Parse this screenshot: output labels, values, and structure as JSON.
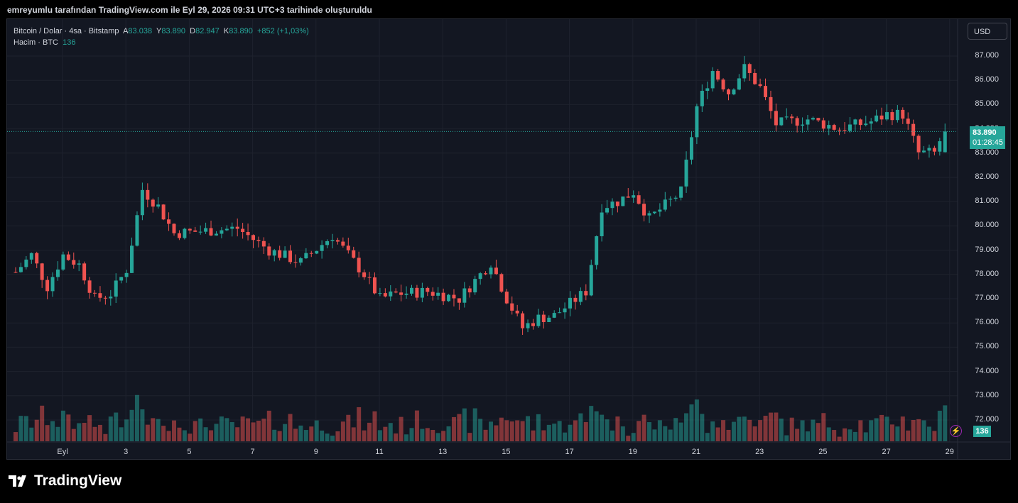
{
  "header": {
    "title": "emreyumlu tarafından TradingView.com ile Eyl 29, 2026 09:31 UTC+3 tarihinde oluşturuldu"
  },
  "legend": {
    "symbol": "Bitcoin / Dolar · 4sa · Bitstamp",
    "o_label": "A",
    "o_value": "83.038",
    "h_label": "Y",
    "h_value": "83.890",
    "l_label": "D",
    "l_value": "82.947",
    "c_label": "K",
    "c_value": "83.890",
    "change": "+852 (+1,03%)",
    "volume_label": "Hacim · BTC",
    "volume_value": "136"
  },
  "currency": "USD",
  "price_tag": {
    "price": "83.890",
    "countdown": "01:28:45"
  },
  "volume_tag": "136",
  "brand": "TradingView",
  "colors": {
    "up": "#26a69a",
    "down": "#ef5350",
    "background": "#131722",
    "grid": "#1e222d"
  },
  "chart_data": {
    "type": "candlestick",
    "y_axis": {
      "min": 72000,
      "max": 87000,
      "ticks": [
        "87.000",
        "86.000",
        "85.000",
        "84.000",
        "83.000",
        "82.000",
        "81.000",
        "80.000",
        "79.000",
        "78.000",
        "77.000",
        "76.000",
        "75.000",
        "74.000",
        "73.000",
        "72.000"
      ]
    },
    "x_axis": {
      "ticks": [
        "Eyl",
        "3",
        "5",
        "7",
        "9",
        "11",
        "13",
        "15",
        "17",
        "19",
        "21",
        "23",
        "25",
        "27",
        "29"
      ]
    },
    "anchors": [
      {
        "day": 0,
        "price": 78100
      },
      {
        "day": 0.5,
        "price": 78800
      },
      {
        "day": 1.0,
        "price": 77500
      },
      {
        "day": 1.5,
        "price": 78800
      },
      {
        "day": 2.0,
        "price": 78400
      },
      {
        "day": 2.5,
        "price": 77000
      },
      {
        "day": 3.0,
        "price": 77200
      },
      {
        "day": 3.5,
        "price": 78200
      },
      {
        "day": 4.0,
        "price": 81500
      },
      {
        "day": 4.5,
        "price": 80800
      },
      {
        "day": 5.0,
        "price": 79700
      },
      {
        "day": 6.0,
        "price": 79800
      },
      {
        "day": 7.0,
        "price": 79900
      },
      {
        "day": 8.0,
        "price": 79000
      },
      {
        "day": 9.0,
        "price": 78500
      },
      {
        "day": 10.0,
        "price": 79600
      },
      {
        "day": 11.0,
        "price": 78000
      },
      {
        "day": 11.5,
        "price": 77000
      },
      {
        "day": 12.0,
        "price": 77200
      },
      {
        "day": 13.0,
        "price": 77300
      },
      {
        "day": 14.0,
        "price": 77000
      },
      {
        "day": 15.0,
        "price": 78500
      },
      {
        "day": 15.5,
        "price": 77000
      },
      {
        "day": 16.0,
        "price": 75800
      },
      {
        "day": 16.5,
        "price": 76200
      },
      {
        "day": 17.0,
        "price": 76300
      },
      {
        "day": 18.0,
        "price": 77300
      },
      {
        "day": 18.5,
        "price": 80800
      },
      {
        "day": 19.0,
        "price": 81000
      },
      {
        "day": 19.5,
        "price": 81400
      },
      {
        "day": 20.0,
        "price": 80300
      },
      {
        "day": 21.0,
        "price": 81400
      },
      {
        "day": 21.5,
        "price": 84900
      },
      {
        "day": 22.0,
        "price": 86400
      },
      {
        "day": 22.5,
        "price": 85500
      },
      {
        "day": 23.0,
        "price": 86500
      },
      {
        "day": 23.5,
        "price": 85700
      },
      {
        "day": 24.0,
        "price": 84200
      },
      {
        "day": 25.0,
        "price": 84400
      },
      {
        "day": 26.0,
        "price": 84000
      },
      {
        "day": 27.0,
        "price": 84300
      },
      {
        "day": 27.5,
        "price": 84600
      },
      {
        "day": 28.0,
        "price": 84600
      },
      {
        "day": 28.5,
        "price": 83000
      },
      {
        "day": 29.0,
        "price": 83000
      },
      {
        "day": 29.3,
        "price": 83890
      }
    ]
  }
}
